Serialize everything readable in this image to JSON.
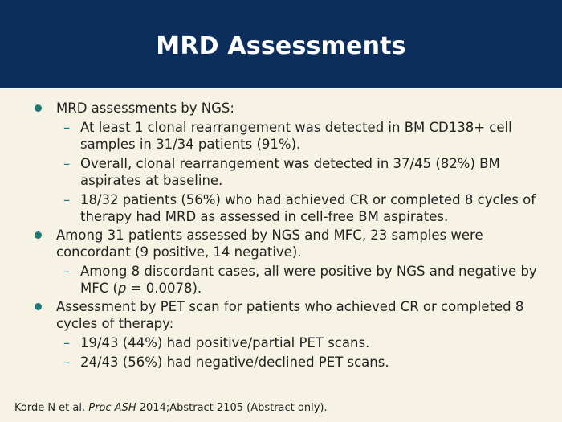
{
  "slide": {
    "title": "MRD Assessments",
    "bullets": [
      {
        "text": "MRD assessments by NGS:",
        "subs": [
          "At least 1 clonal rearrangement was detected in BM CD138+ cell samples in 31/34 patients (91%).",
          "Overall, clonal rearrangement was detected in 37/45 (82%) BM aspirates at baseline.",
          "18/32 patients (56%) who had achieved CR or completed 8 cycles of therapy had MRD as assessed in cell-free BM aspirates."
        ]
      },
      {
        "text": "Among 31 patients assessed by NGS and MFC, 23 samples were concordant (9 positive, 14 negative).",
        "subs": [
          {
            "pre": "Among 8 discordant cases, all were positive by NGS and negative by MFC (",
            "italic": "p",
            "post": " = 0.0078)."
          }
        ]
      },
      {
        "text": "Assessment by PET scan for patients who achieved CR or completed 8 cycles of therapy:",
        "subs": [
          "19/43 (44%) had positive/partial PET scans.",
          "24/43 (56%) had negative/declined PET scans."
        ]
      }
    ],
    "dash": "–",
    "citation": {
      "pre": "Korde N et al. ",
      "journal": "Proc ASH",
      "post": " 2014;Abstract 2105 (Abstract only)."
    }
  }
}
